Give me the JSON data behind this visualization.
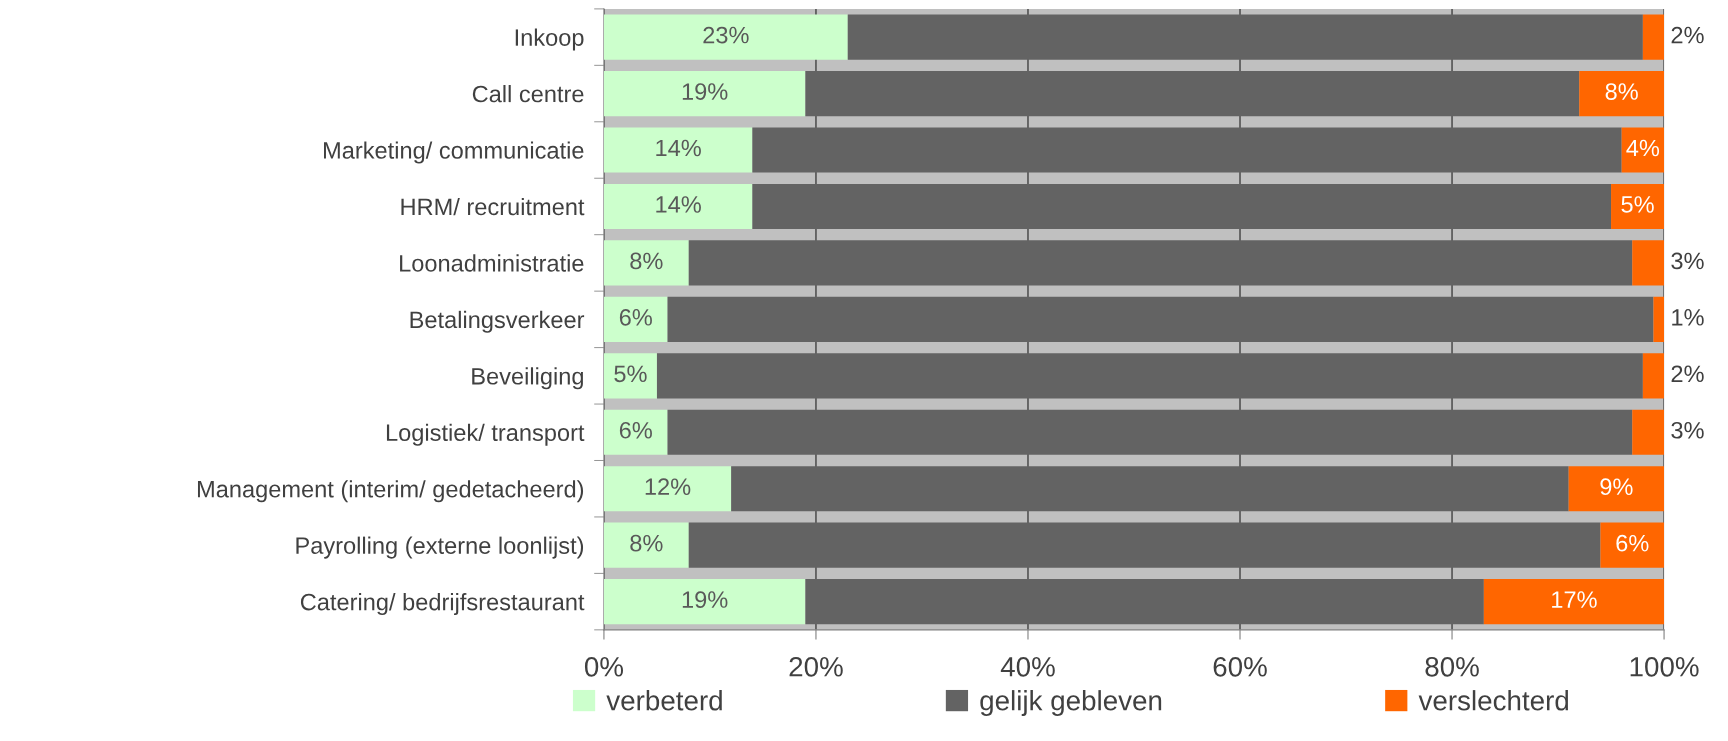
{
  "chart_data": {
    "type": "bar",
    "orientation": "horizontal",
    "stacked": true,
    "categories": [
      "Inkoop",
      "Call centre",
      "Marketing/ communicatie",
      "HRM/ recruitment",
      "Loonadministratie",
      "Betalingsverkeer",
      "Beveiliging",
      "Logistiek/ transport",
      "Management (interim/ gedetacheerd)",
      "Payrolling (externe loonlijst)",
      "Catering/ bedrijfsrestaurant"
    ],
    "series": [
      {
        "name": "verbeterd",
        "color": "#ccffcc",
        "values": [
          23,
          19,
          14,
          14,
          8,
          6,
          5,
          6,
          12,
          8,
          19
        ],
        "value_labels": [
          "23%",
          "19%",
          "14%",
          "14%",
          "8%",
          "6%",
          "5%",
          "6%",
          "12%",
          "8%",
          "19%"
        ]
      },
      {
        "name": "gelijk gebleven",
        "color": "#636363",
        "values": [
          75,
          73,
          82,
          81,
          89,
          93,
          93,
          91,
          79,
          86,
          64
        ]
      },
      {
        "name": "verslechterd",
        "color": "#ff6600",
        "values": [
          2,
          8,
          4,
          5,
          3,
          1,
          2,
          3,
          9,
          6,
          17
        ],
        "value_labels": [
          "2%",
          "8%",
          "4%",
          "5%",
          "3%",
          "1%",
          "2%",
          "3%",
          "9%",
          "6%",
          "17%"
        ]
      }
    ],
    "xlim": [
      0,
      100
    ],
    "xticks": [
      {
        "value": 0,
        "label": "0%"
      },
      {
        "value": 20,
        "label": "20%"
      },
      {
        "value": 40,
        "label": "40%"
      },
      {
        "value": 60,
        "label": "60%"
      },
      {
        "value": 80,
        "label": "80%"
      },
      {
        "value": 100,
        "label": "100%"
      }
    ],
    "grid": "x",
    "legend": "bottom"
  }
}
